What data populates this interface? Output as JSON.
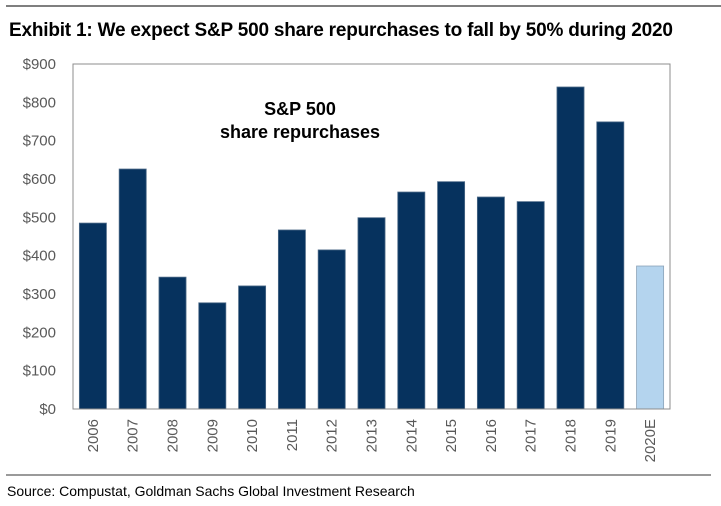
{
  "title": "Exhibit 1: We expect S&P 500 share repurchases to fall by 50% during 2020",
  "source": "Source: Compustat, Goldman Sachs Global Investment Research",
  "colors": {
    "actual": "#06325e",
    "estimate": "#b4d4ee",
    "axis": "#8c8c8c",
    "tick_text": "#595959"
  },
  "chart_data": {
    "type": "bar",
    "title": "Exhibit 1: We expect S&P 500 share repurchases to fall by 50% during 2020",
    "xlabel": "",
    "ylabel": "",
    "annotation": [
      "S&P 500",
      "share repurchases"
    ],
    "categories": [
      "2006",
      "2007",
      "2008",
      "2009",
      "2010",
      "2011",
      "2012",
      "2013",
      "2014",
      "2015",
      "2016",
      "2017",
      "2018",
      "2019",
      "2020E"
    ],
    "values": [
      485,
      626,
      344,
      277,
      321,
      467,
      415,
      499,
      566,
      593,
      553,
      541,
      840,
      749,
      373
    ],
    "estimate_flags": [
      false,
      false,
      false,
      false,
      false,
      false,
      false,
      false,
      false,
      false,
      false,
      false,
      false,
      false,
      true
    ],
    "ylim": [
      0,
      900
    ],
    "yticks": [
      0,
      100,
      200,
      300,
      400,
      500,
      600,
      700,
      800,
      900
    ],
    "ytick_labels": [
      "$0",
      "$100",
      "$200",
      "$300",
      "$400",
      "$500",
      "$600",
      "$700",
      "$800",
      "$900"
    ],
    "grid": false,
    "legend": "none"
  }
}
